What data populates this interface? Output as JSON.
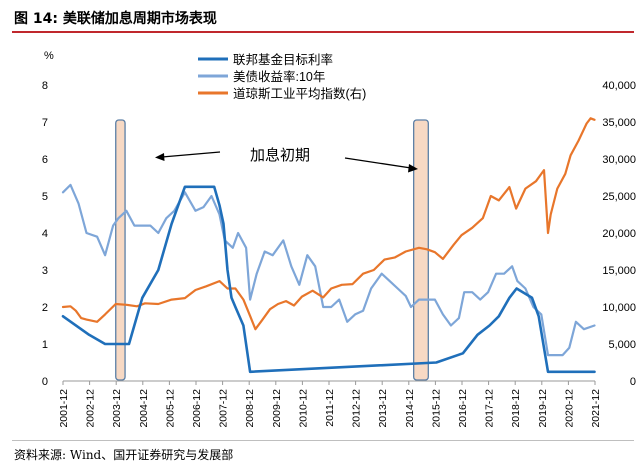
{
  "figure": {
    "title": "图 14:  美联储加息周期市场表现",
    "source": "资料来源:  Wind、国开证券研究与发展部"
  },
  "chart_data": {
    "type": "line",
    "left_axis_label": "%",
    "ylim_left": [
      0,
      8
    ],
    "yticks_left": [
      "0",
      "1",
      "2",
      "3",
      "4",
      "5",
      "6",
      "7",
      "8"
    ],
    "ylim_right": [
      0,
      40000
    ],
    "yticks_right": [
      "0",
      "5,000",
      "10,000",
      "15,000",
      "20,000",
      "25,000",
      "30,000",
      "35,000",
      "40,000"
    ],
    "x_range": [
      2001.917,
      2021.917
    ],
    "x_tick_labels": [
      "2001-12",
      "2002-12",
      "2003-12",
      "2004-12",
      "2005-12",
      "2006-12",
      "2007-12",
      "2008-12",
      "2009-12",
      "2010-12",
      "2011-12",
      "2012-12",
      "2013-12",
      "2014-12",
      "2015-12",
      "2016-12",
      "2017-12",
      "2018-12",
      "2019-12",
      "2020-12",
      "2021-12"
    ],
    "annotation": "加息初期",
    "highlight_periods": [
      [
        2003.9,
        2004.25
      ],
      [
        2015.1,
        2015.65
      ]
    ],
    "colors": {
      "fed": "#1f6fba",
      "treasury": "#7ea6d8",
      "dow": "#e8762b",
      "band_fill": "#f7d9c4",
      "band_stroke": "#5b7fa6"
    },
    "series": [
      {
        "name": "联邦基金目标利率",
        "axis": "left",
        "x": [
          2001.917,
          2002.9,
          2003.5,
          2004.4,
          2004.9,
          2005.5,
          2006.0,
          2006.5,
          2007.6,
          2007.8,
          2007.95,
          2008.1,
          2008.25,
          2008.4,
          2008.7,
          2008.95,
          2015.95,
          2016.95,
          2017.5,
          2017.95,
          2018.3,
          2018.7,
          2018.97,
          2019.55,
          2019.8,
          2020.15,
          2021.9
        ],
        "values": [
          1.75,
          1.25,
          1.0,
          1.0,
          2.25,
          3.0,
          4.25,
          5.25,
          5.25,
          4.75,
          4.25,
          3.0,
          2.25,
          2.0,
          1.5,
          0.25,
          0.5,
          0.75,
          1.25,
          1.5,
          1.75,
          2.25,
          2.5,
          2.25,
          1.75,
          0.25,
          0.25
        ]
      },
      {
        "name": "美债收益率:10年",
        "axis": "left",
        "x": [
          2001.917,
          2002.2,
          2002.5,
          2002.8,
          2003.2,
          2003.5,
          2003.8,
          2004.0,
          2004.3,
          2004.6,
          2004.9,
          2005.2,
          2005.5,
          2005.8,
          2006.1,
          2006.5,
          2006.9,
          2007.2,
          2007.5,
          2007.8,
          2008.0,
          2008.3,
          2008.5,
          2008.8,
          2008.95,
          2009.2,
          2009.5,
          2009.8,
          2010.2,
          2010.5,
          2010.8,
          2011.1,
          2011.4,
          2011.7,
          2012.0,
          2012.3,
          2012.6,
          2012.9,
          2013.2,
          2013.5,
          2013.9,
          2014.2,
          2014.5,
          2014.8,
          2015.0,
          2015.3,
          2015.6,
          2015.9,
          2016.2,
          2016.5,
          2016.8,
          2017.0,
          2017.3,
          2017.6,
          2017.9,
          2018.2,
          2018.5,
          2018.8,
          2019.0,
          2019.3,
          2019.6,
          2019.9,
          2020.15,
          2020.4,
          2020.7,
          2020.95,
          2021.2,
          2021.5,
          2021.9
        ],
        "values": [
          5.1,
          5.3,
          4.8,
          4.0,
          3.9,
          3.4,
          4.2,
          4.4,
          4.6,
          4.2,
          4.2,
          4.2,
          4.0,
          4.4,
          4.6,
          5.1,
          4.6,
          4.7,
          5.0,
          4.5,
          3.8,
          3.6,
          4.0,
          3.6,
          2.2,
          2.9,
          3.5,
          3.4,
          3.8,
          3.1,
          2.6,
          3.4,
          3.1,
          2.0,
          2.0,
          2.2,
          1.6,
          1.8,
          1.9,
          2.5,
          2.9,
          2.7,
          2.5,
          2.3,
          2.0,
          2.2,
          2.2,
          2.2,
          1.8,
          1.5,
          1.7,
          2.4,
          2.4,
          2.2,
          2.4,
          2.9,
          2.9,
          3.1,
          2.7,
          2.5,
          2.0,
          1.8,
          0.7,
          0.7,
          0.7,
          0.9,
          1.6,
          1.4,
          1.5
        ]
      },
      {
        "name": "道琼斯工业平均指数(右)",
        "axis": "right",
        "x": [
          2001.917,
          2002.2,
          2002.4,
          2002.6,
          2002.8,
          2003.2,
          2003.5,
          2003.9,
          2004.3,
          2004.7,
          2005.0,
          2005.5,
          2006.0,
          2006.5,
          2006.9,
          2007.3,
          2007.8,
          2008.1,
          2008.4,
          2008.7,
          2008.95,
          2009.15,
          2009.4,
          2009.7,
          2010.0,
          2010.3,
          2010.6,
          2010.9,
          2011.3,
          2011.7,
          2012.0,
          2012.4,
          2012.8,
          2013.2,
          2013.6,
          2014.0,
          2014.4,
          2014.8,
          2015.3,
          2015.6,
          2015.9,
          2016.2,
          2016.6,
          2016.9,
          2017.3,
          2017.7,
          2018.0,
          2018.3,
          2018.7,
          2018.95,
          2019.3,
          2019.7,
          2020.0,
          2020.15,
          2020.25,
          2020.5,
          2020.8,
          2021.0,
          2021.3,
          2021.6,
          2021.75,
          2021.9
        ],
        "values": [
          10000,
          10100,
          9500,
          8500,
          8300,
          8000,
          9000,
          10400,
          10300,
          10100,
          10500,
          10400,
          11000,
          11200,
          12300,
          12800,
          13500,
          12500,
          12500,
          11000,
          8800,
          7000,
          8200,
          9700,
          10400,
          10800,
          10200,
          11400,
          12200,
          11300,
          12500,
          13000,
          13100,
          14500,
          15000,
          16400,
          16700,
          17500,
          18000,
          17800,
          17400,
          16500,
          18400,
          19700,
          20700,
          22000,
          25000,
          24400,
          26200,
          23300,
          26000,
          27000,
          28500,
          20000,
          22500,
          26000,
          28000,
          30500,
          32500,
          34800,
          35500,
          35300
        ]
      }
    ]
  }
}
